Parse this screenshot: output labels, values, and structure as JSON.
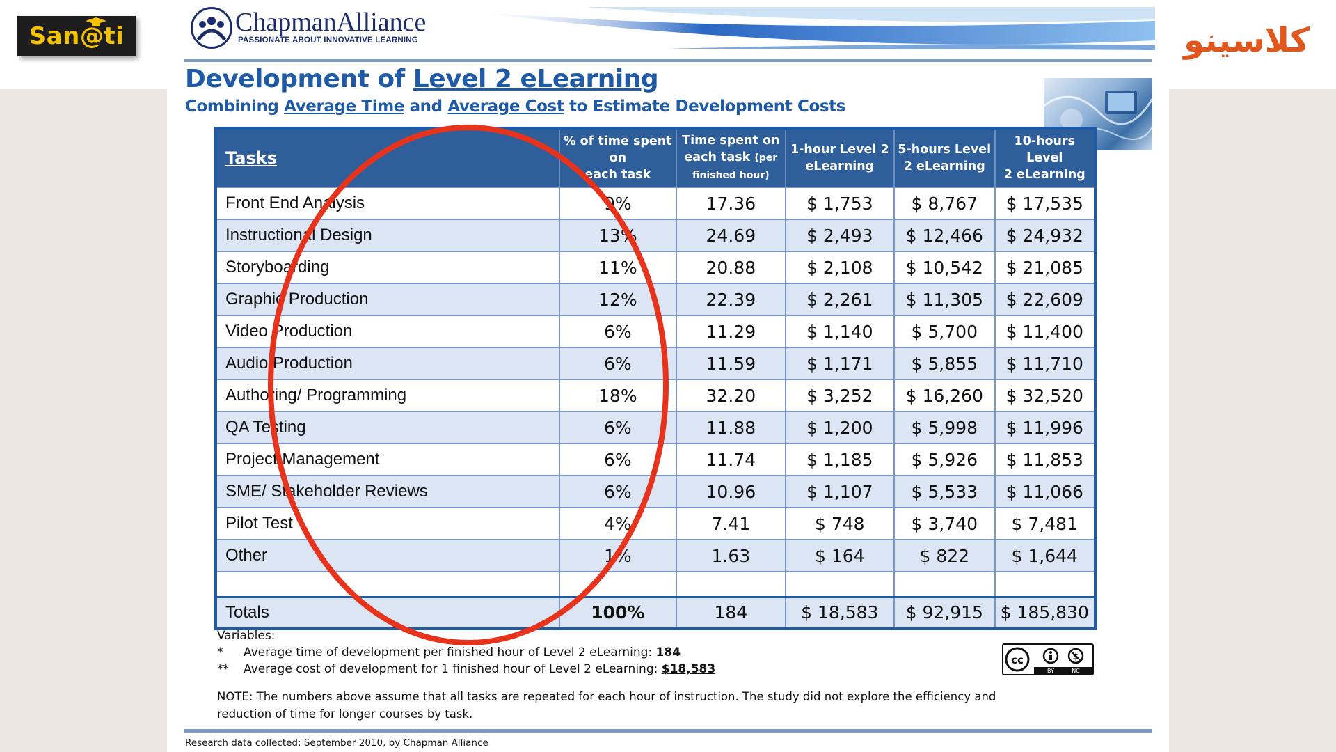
{
  "branding": {
    "left_logo": "San@ti",
    "right_logo": "كلاسينو"
  },
  "header": {
    "brand": "ChapmanAlliance",
    "tagline": "PASSIONATE ABOUT INNOVATIVE LEARNING"
  },
  "slide": {
    "title_prefix": "Development of",
    "title_underlined": "Level 2 eLearning",
    "subtitle_part1": "Combining",
    "subtitle_u1": "Average Time",
    "subtitle_part2": "and",
    "subtitle_u2": "Average Cost",
    "subtitle_part3": "to Estimate Development Costs"
  },
  "table": {
    "headers": {
      "tasks": "Tasks",
      "pct_line1": "% of time spent on",
      "pct_line2": "each task",
      "time_line1": "Time spent on",
      "time_line2": "each task",
      "time_small": "(per",
      "time_line3": "finished hour)",
      "h1_line1": "1-hour Level 2",
      "h1_line2": "eLearning",
      "h5_line1": "5-hours Level",
      "h5_line2": "2 eLearning",
      "h10_line1": "10-hours Level",
      "h10_line2": "2 eLearning"
    },
    "rows": [
      {
        "task": "Front End Analysis",
        "pct": "9%",
        "time": "17.36",
        "h1": "$ 1,753",
        "h5": "$ 8,767",
        "h10": "$ 17,535"
      },
      {
        "task": "Instructional  Design",
        "pct": "13%",
        "time": "24.69",
        "h1": "$ 2,493",
        "h5": "$ 12,466",
        "h10": "$ 24,932"
      },
      {
        "task": "Storyboarding",
        "pct": "11%",
        "time": "20.88",
        "h1": "$ 2,108",
        "h5": "$ 10,542",
        "h10": "$ 21,085"
      },
      {
        "task": "Graphic Production",
        "pct": "12%",
        "time": "22.39",
        "h1": "$ 2,261",
        "h5": "$ 11,305",
        "h10": "$ 22,609"
      },
      {
        "task": "Video Production",
        "pct": "6%",
        "time": "11.29",
        "h1": "$ 1,140",
        "h5": "$ 5,700",
        "h10": "$ 11,400"
      },
      {
        "task": "Audio Production",
        "pct": "6%",
        "time": "11.59",
        "h1": "$ 1,171",
        "h5": "$ 5,855",
        "h10": "$ 11,710"
      },
      {
        "task": "Authoring/ Programming",
        "pct": "18%",
        "time": "32.20",
        "h1": "$ 3,252",
        "h5": "$ 16,260",
        "h10": "$ 32,520"
      },
      {
        "task": "QA Testing",
        "pct": "6%",
        "time": "11.88",
        "h1": "$ 1,200",
        "h5": "$ 5,998",
        "h10": "$ 11,996"
      },
      {
        "task": "Project Management",
        "pct": "6%",
        "time": "11.74",
        "h1": "$ 1,185",
        "h5": "$ 5,926",
        "h10": "$ 11,853"
      },
      {
        "task": "SME/ Stakeholder Reviews",
        "pct": "6%",
        "time": "10.96",
        "h1": "$ 1,107",
        "h5": "$ 5,533",
        "h10": "$ 11,066"
      },
      {
        "task": "Pilot Test",
        "pct": "4%",
        "time": "7.41",
        "h1": "$ 748",
        "h5": "$ 3,740",
        "h10": "$ 7,481"
      },
      {
        "task": "Other",
        "pct": "1%",
        "time": "1.63",
        "h1": "$ 164",
        "h5": "$ 822",
        "h10": "$ 1,644"
      }
    ],
    "totals": {
      "task": "Totals",
      "pct": "100%",
      "time": "184",
      "h1": "$ 18,583",
      "h5": "$ 92,915",
      "h10": "$ 185,830"
    }
  },
  "variables": {
    "label": "Variables:",
    "line1_star": "*",
    "line1_text": "Average time of development  per finished hour of Level 2 eLearning: ",
    "line1_value": "184",
    "line2_star": "**",
    "line2_text": "Average cost of development for 1 finished  hour of Level 2 eLearning: ",
    "line2_value": "$18,583"
  },
  "note": "NOTE:  The numbers above assume that all tasks are repeated for each hour of instruction. The study did not explore the efficiency and reduction of time for longer courses by task.",
  "license": {
    "by": "BY",
    "nc": "NC"
  },
  "footer": "Research data collected: September 2010, by Chapman Alliance",
  "colors": {
    "brand_blue": "#1f5aa6",
    "header_blue": "#2e5f9a",
    "row_alt": "#dbe5f3",
    "highlight_circle": "#e8331c",
    "left_logo_text": "#f5c200",
    "right_logo_text": "#e0561d"
  }
}
